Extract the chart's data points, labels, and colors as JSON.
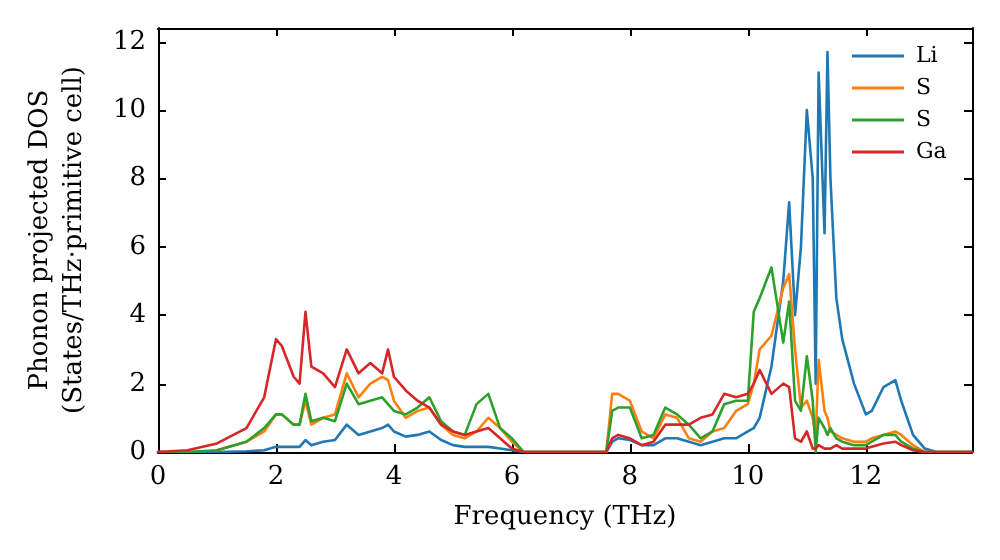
{
  "chart_data": {
    "type": "line",
    "xlabel": "Frequency (THz)",
    "ylabel": "Phonon projected DOS\n(States/THz·primitive cell)",
    "x": [
      0,
      0.5,
      1,
      1.5,
      1.8,
      2,
      2.1,
      2.3,
      2.4,
      2.5,
      2.6,
      2.8,
      3,
      3.2,
      3.4,
      3.6,
      3.8,
      3.9,
      4,
      4.2,
      4.4,
      4.6,
      4.8,
      5,
      5.2,
      5.4,
      5.6,
      5.8,
      6,
      6.2,
      7.6,
      7.7,
      7.8,
      8,
      8.2,
      8.4,
      8.6,
      8.8,
      9,
      9.2,
      9.4,
      9.6,
      9.8,
      10,
      10.1,
      10.2,
      10.4,
      10.6,
      10.7,
      10.8,
      10.9,
      11,
      11.1,
      11.15,
      11.2,
      11.3,
      11.35,
      11.4,
      11.5,
      11.6,
      11.8,
      12,
      12.1,
      12.3,
      12.5,
      12.6,
      12.8,
      13,
      13.2,
      13.8
    ],
    "series": [
      {
        "name": "Li",
        "color": "#1f77b4",
        "values": [
          0,
          0,
          0,
          0.02,
          0.05,
          0.15,
          0.15,
          0.15,
          0.15,
          0.35,
          0.2,
          0.3,
          0.35,
          0.8,
          0.5,
          0.6,
          0.7,
          0.8,
          0.6,
          0.45,
          0.5,
          0.6,
          0.35,
          0.2,
          0.15,
          0.15,
          0.15,
          0.1,
          0.05,
          0,
          0,
          0.3,
          0.4,
          0.35,
          0.2,
          0.2,
          0.4,
          0.4,
          0.3,
          0.2,
          0.3,
          0.4,
          0.4,
          0.6,
          0.7,
          1.0,
          2.5,
          5.0,
          7.3,
          4.0,
          6.0,
          10.0,
          8.0,
          2.0,
          11.1,
          6.4,
          11.7,
          8.0,
          4.5,
          3.3,
          2.0,
          1.1,
          1.2,
          1.9,
          2.1,
          1.5,
          0.5,
          0.1,
          0,
          0
        ]
      },
      {
        "name": "S",
        "color": "#ff7f0e",
        "values": [
          null,
          null,
          0.05,
          0.3,
          0.6,
          1.1,
          1.1,
          0.8,
          0.8,
          1.5,
          0.8,
          1.0,
          1.1,
          2.3,
          1.6,
          2.0,
          2.2,
          2.1,
          1.5,
          1.0,
          1.2,
          1.3,
          0.8,
          0.5,
          0.4,
          0.6,
          1.0,
          0.7,
          0.3,
          0,
          0,
          1.7,
          1.7,
          1.5,
          0.6,
          0.4,
          1.1,
          1.0,
          0.4,
          0.3,
          0.6,
          0.7,
          1.2,
          1.4,
          2.0,
          3.0,
          3.4,
          4.8,
          5.2,
          3.0,
          1.3,
          1.5,
          1.0,
          0.4,
          2.7,
          1.2,
          1.0,
          0.6,
          0.5,
          0.4,
          0.3,
          0.3,
          0.4,
          0.5,
          0.6,
          0.5,
          0.2,
          0,
          0,
          0
        ]
      },
      {
        "name": "S",
        "color": "#2ca02c",
        "values": [
          0,
          0,
          0.05,
          0.3,
          0.7,
          1.1,
          1.1,
          0.8,
          0.8,
          1.7,
          0.9,
          1.0,
          0.9,
          2.0,
          1.4,
          1.5,
          1.6,
          1.4,
          1.2,
          1.1,
          1.3,
          1.6,
          0.9,
          0.6,
          0.5,
          1.4,
          1.7,
          0.7,
          0.4,
          0,
          0,
          1.2,
          1.3,
          1.3,
          0.4,
          0.5,
          1.3,
          1.1,
          0.8,
          0.4,
          0.6,
          1.4,
          1.5,
          1.5,
          4.1,
          4.5,
          5.4,
          3.2,
          4.4,
          1.5,
          1.2,
          2.8,
          1.5,
          0,
          1.0,
          0.7,
          0.5,
          0.7,
          0.4,
          0.3,
          0.2,
          0.2,
          0.3,
          0.5,
          0.5,
          0.3,
          0.1,
          0,
          0,
          0
        ]
      },
      {
        "name": "Ga",
        "color": "#d62728",
        "values": [
          0,
          0.05,
          0.25,
          0.7,
          1.6,
          3.3,
          3.1,
          2.2,
          2.0,
          4.1,
          2.5,
          2.3,
          1.9,
          3.0,
          2.3,
          2.6,
          2.3,
          3.0,
          2.2,
          1.8,
          1.5,
          1.3,
          0.8,
          0.6,
          0.5,
          0.6,
          0.7,
          0.4,
          0.1,
          0,
          0,
          0.4,
          0.5,
          0.4,
          0.2,
          0.3,
          0.8,
          0.8,
          0.8,
          1.0,
          1.1,
          1.7,
          1.6,
          1.7,
          2.0,
          2.4,
          1.7,
          2.0,
          1.9,
          0.4,
          0.3,
          0.6,
          0.1,
          0.1,
          0.2,
          0.1,
          0.1,
          0.1,
          0.2,
          0.1,
          0.1,
          0.1,
          0.15,
          0.25,
          0.3,
          0.2,
          0.05,
          0,
          0,
          0
        ]
      }
    ],
    "xlim": [
      0,
      13.8
    ],
    "xticks": [
      0,
      2,
      4,
      6,
      8,
      10,
      12
    ],
    "ylim": [
      0,
      12.4
    ],
    "yticks": [
      0,
      2,
      4,
      6,
      8,
      10,
      12
    ],
    "grid": false,
    "legend": "top right",
    "marker": "none",
    "line_style": "solid"
  }
}
